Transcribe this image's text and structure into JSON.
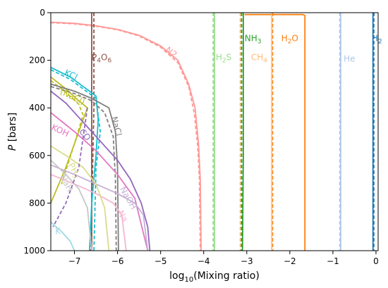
{
  "chart_data": {
    "type": "line",
    "xlabel_main": "log",
    "xlabel_sub": "10",
    "xlabel_rest": "(Mixing ratio)",
    "ylabel_italic": "P",
    "ylabel_rest": " [bars]",
    "xlim": [
      -7.55,
      0.05
    ],
    "ylim": [
      1000,
      0
    ],
    "xticks": [
      -7,
      -6,
      -5,
      -4,
      -3,
      -2,
      -1,
      0
    ],
    "xtick_labels": [
      "−7",
      "−6",
      "−5",
      "−4",
      "−3",
      "−2",
      "−1",
      "0"
    ],
    "yticks": [
      0,
      200,
      400,
      600,
      800,
      1000
    ],
    "ytick_labels": [
      "0",
      "200",
      "400",
      "600",
      "800",
      "1000"
    ],
    "grid": false,
    "legend": "none",
    "series": [
      {
        "name": "H2",
        "label_main": "H",
        "label_sub": "2",
        "color": "#1f77b4",
        "label_x": -0.1,
        "label_y": 120,
        "solid": [
          [
            -0.07,
            0
          ],
          [
            -0.07,
            1000
          ]
        ],
        "dashed": [
          [
            -0.05,
            0
          ],
          [
            -0.05,
            1000
          ]
        ]
      },
      {
        "name": "He",
        "label_main": "He",
        "label_sub": "",
        "color": "#aec7e8",
        "label_x": -0.75,
        "label_y": 205,
        "solid": [
          [
            -0.82,
            0
          ],
          [
            -0.82,
            1000
          ]
        ],
        "dashed": [
          [
            -0.84,
            0
          ],
          [
            -0.84,
            1000
          ]
        ]
      },
      {
        "name": "H2O",
        "label_main": "H",
        "label_sub": "2",
        "label_rest": "O",
        "color": "#ff7f0e",
        "label_x": -2.2,
        "label_y": 120,
        "solid": [
          [
            -3.05,
            8
          ],
          [
            -1.7,
            8
          ],
          [
            -1.65,
            12
          ],
          [
            -1.65,
            1000
          ]
        ],
        "dashed": [
          [
            -2.4,
            0
          ],
          [
            -2.4,
            1000
          ]
        ]
      },
      {
        "name": "CH4",
        "label_main": "CH",
        "label_sub": "4",
        "color": "#ffbb78",
        "label_x": -2.9,
        "label_y": 200,
        "solid": [
          [
            -2.42,
            0
          ],
          [
            -2.42,
            1000
          ]
        ],
        "dashed": [
          [
            -3.15,
            0
          ],
          [
            -3.15,
            1000
          ]
        ]
      },
      {
        "name": "NH3",
        "label_main": "NH",
        "label_sub": "3",
        "color": "#2ca02c",
        "label_x": -3.05,
        "label_y": 120,
        "solid": [
          [
            -3.08,
            0
          ],
          [
            -3.08,
            600
          ],
          [
            -3.1,
            1000
          ]
        ],
        "dashed": [
          [
            -3.12,
            0
          ],
          [
            -3.12,
            1000
          ]
        ]
      },
      {
        "name": "H2S",
        "label_main": "H",
        "label_sub": "2",
        "label_rest": "S",
        "color": "#98df8a",
        "label_x": -3.72,
        "label_y": 200,
        "solid": [
          [
            -3.75,
            0
          ],
          [
            -3.75,
            1000
          ]
        ],
        "dashed": [
          [
            -3.78,
            0
          ],
          [
            -3.78,
            1000
          ]
        ]
      },
      {
        "name": "N2",
        "label_main": "N2",
        "label_sub": "",
        "color": "#ff9896",
        "label_x": -4.9,
        "label_y": 160,
        "label_rot": 38,
        "solid": [
          [
            -7.55,
            40
          ],
          [
            -7.0,
            45
          ],
          [
            -6.5,
            55
          ],
          [
            -6.0,
            70
          ],
          [
            -5.5,
            95
          ],
          [
            -5.0,
            140
          ],
          [
            -4.6,
            200
          ],
          [
            -4.35,
            300
          ],
          [
            -4.2,
            400
          ],
          [
            -4.12,
            550
          ],
          [
            -4.08,
            700
          ],
          [
            -4.06,
            1000
          ]
        ],
        "dashed": [
          [
            -7.55,
            42
          ],
          [
            -7.0,
            47
          ],
          [
            -6.5,
            57
          ],
          [
            -6.0,
            72
          ],
          [
            -5.5,
            98
          ],
          [
            -5.0,
            145
          ],
          [
            -4.6,
            210
          ],
          [
            -4.35,
            310
          ],
          [
            -4.22,
            420
          ],
          [
            -4.14,
            560
          ],
          [
            -4.1,
            700
          ],
          [
            -4.08,
            1000
          ]
        ]
      },
      {
        "name": "P4O6",
        "label_main": "P",
        "label_sub": "4",
        "label_rest": "O",
        "label_sub2": "6",
        "color": "#8c564b",
        "label_x": -6.6,
        "label_y": 200,
        "solid": [
          [
            -6.6,
            0
          ],
          [
            -6.6,
            1000
          ]
        ],
        "dashed": [
          [
            -6.55,
            0
          ],
          [
            -6.55,
            400
          ],
          [
            -6.62,
            1000
          ]
        ]
      },
      {
        "name": "KCl",
        "label_main": "KCl",
        "label_sub": "",
        "color": "#17becf",
        "label_x": -7.25,
        "label_y": 260,
        "label_rot": 25,
        "solid": [
          [
            -7.55,
            230
          ],
          [
            -7.1,
            270
          ],
          [
            -6.8,
            310
          ],
          [
            -6.5,
            350
          ],
          [
            -6.45,
            450
          ],
          [
            -6.5,
            600
          ],
          [
            -6.6,
            800
          ],
          [
            -6.65,
            1000
          ]
        ],
        "dashed": [
          [
            -7.55,
            240
          ],
          [
            -7.1,
            280
          ],
          [
            -6.8,
            320
          ],
          [
            -6.5,
            360
          ],
          [
            -6.4,
            500
          ],
          [
            -6.5,
            650
          ],
          [
            -6.55,
            1000
          ]
        ]
      },
      {
        "name": "(NaCl)",
        "label_main": "(NaCl)",
        "label_sub": "",
        "color": "#bcbd22",
        "label_x": -7.35,
        "label_y": 340,
        "label_rot": 25,
        "solid": [
          [
            -7.55,
            270
          ],
          [
            -7.2,
            320
          ],
          [
            -6.9,
            370
          ],
          [
            -6.7,
            400
          ],
          [
            -6.9,
            500
          ],
          [
            -7.2,
            650
          ],
          [
            -7.55,
            800
          ]
        ],
        "dashed": [
          [
            -7.55,
            285
          ],
          [
            -7.2,
            335
          ],
          [
            -6.9,
            385
          ],
          [
            -6.8,
            430
          ],
          [
            -7.0,
            550
          ],
          [
            -7.3,
            720
          ]
        ]
      },
      {
        "name": "NaCl",
        "label_main": "NaCl",
        "label_sub": "",
        "color": "#7f7f7f",
        "label_x": -6.15,
        "label_y": 440,
        "label_rot": 75,
        "solid": [
          [
            -7.55,
            300
          ],
          [
            -7.0,
            330
          ],
          [
            -6.6,
            360
          ],
          [
            -6.2,
            400
          ],
          [
            -6.05,
            500
          ],
          [
            -6.0,
            650
          ],
          [
            -5.98,
            1000
          ]
        ],
        "dashed": [
          [
            -7.55,
            310
          ],
          [
            -7.0,
            340
          ],
          [
            -6.6,
            370
          ],
          [
            -6.3,
            420
          ],
          [
            -6.1,
            520
          ],
          [
            -6.05,
            700
          ],
          [
            -6.03,
            1000
          ]
        ]
      },
      {
        "name": "KOH",
        "label_main": "KOH",
        "label_sub": "",
        "color": "#e377c2",
        "label_x": -7.55,
        "label_y": 490,
        "label_rot": 25,
        "solid": [
          [
            -7.55,
            420
          ],
          [
            -7.0,
            500
          ],
          [
            -6.5,
            580
          ],
          [
            -6.0,
            680
          ],
          [
            -5.6,
            780
          ],
          [
            -5.3,
            1000
          ]
        ],
        "dashed": []
      },
      {
        "name": "CO",
        "label_main": "CO",
        "label_sub": "",
        "color": "#9467bd",
        "label_x": -6.9,
        "label_y": 500,
        "label_rot": 50,
        "solid": [
          [
            -7.55,
            330
          ],
          [
            -7.2,
            380
          ],
          [
            -6.9,
            440
          ],
          [
            -6.6,
            500
          ],
          [
            -6.3,
            560
          ],
          [
            -6.0,
            620
          ],
          [
            -5.7,
            700
          ],
          [
            -5.45,
            800
          ],
          [
            -5.3,
            900
          ],
          [
            -5.25,
            1000
          ]
        ],
        "dashed": []
      },
      {
        "name": "NaOH",
        "label_main": "NaOH",
        "label_sub": "",
        "color": "#c5b0d5",
        "label_x": -5.95,
        "label_y": 740,
        "label_rot": 60,
        "solid": [
          [
            -7.55,
            640
          ],
          [
            -7.0,
            680
          ],
          [
            -6.5,
            720
          ],
          [
            -6.0,
            760
          ],
          [
            -5.6,
            800
          ],
          [
            -5.4,
            850
          ],
          [
            -5.3,
            1000
          ]
        ],
        "dashed": []
      },
      {
        "name": "Na",
        "label_main": "Na",
        "label_sub": "",
        "color": "#f7b6d2",
        "label_x": -6.0,
        "label_y": 840,
        "label_rot": 60,
        "solid": [
          [
            -7.55,
            680
          ],
          [
            -7.0,
            720
          ],
          [
            -6.5,
            760
          ],
          [
            -6.1,
            800
          ],
          [
            -5.9,
            850
          ],
          [
            -5.8,
            1000
          ]
        ],
        "dashed": []
      },
      {
        "name": "PH3",
        "label_main": "PH",
        "label_sub": "3",
        "color": "#dbdb8d",
        "label_x": -7.15,
        "label_y": 640,
        "label_rot": 60,
        "solid": [
          [
            -7.55,
            560
          ],
          [
            -7.2,
            600
          ],
          [
            -6.8,
            650
          ],
          [
            -6.5,
            720
          ],
          [
            -6.3,
            820
          ],
          [
            -6.2,
            1000
          ]
        ],
        "dashed": []
      },
      {
        "name": "NaH",
        "label_main": "NaH",
        "label_sub": "",
        "color": "#c7c7c7",
        "label_x": -7.35,
        "label_y": 690,
        "label_rot": 60,
        "solid": [
          [
            -7.55,
            620
          ],
          [
            -7.2,
            680
          ],
          [
            -6.9,
            740
          ],
          [
            -6.7,
            820
          ],
          [
            -6.6,
            1000
          ]
        ],
        "dashed": []
      },
      {
        "name": "K",
        "label_main": "K",
        "label_sub": "",
        "color": "#9edae5",
        "label_x": -7.45,
        "label_y": 930,
        "label_rot": 0,
        "solid": [
          [
            -7.55,
            880
          ],
          [
            -7.3,
            920
          ],
          [
            -7.1,
            960
          ],
          [
            -7.0,
            1000
          ]
        ],
        "dashed": []
      },
      {
        "name": "extra-purple",
        "label_main": "",
        "label_sub": "",
        "color": "#9467bd",
        "label_x": -7.55,
        "label_y": 0,
        "solid": [],
        "dashed": [
          [
            -6.7,
            400
          ],
          [
            -6.9,
            650
          ],
          [
            -7.2,
            800
          ],
          [
            -7.5,
            900
          ]
        ]
      }
    ]
  }
}
